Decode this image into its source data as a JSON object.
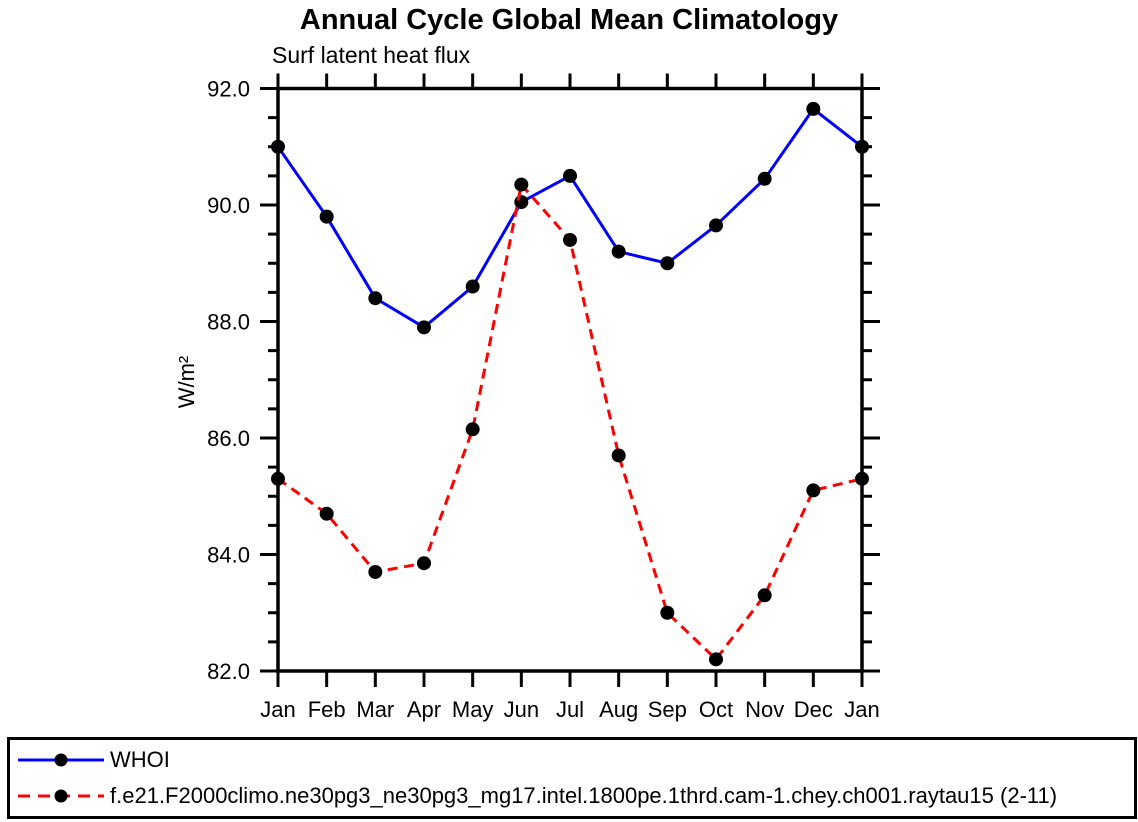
{
  "page": {
    "background": "#ffffff"
  },
  "chart_data": {
    "type": "line",
    "title": "Annual Cycle Global Mean Climatology",
    "subtitle": "Surf latent heat flux",
    "ylabel": "W/m²",
    "xlabel": "",
    "categories": [
      "Jan",
      "Feb",
      "Mar",
      "Apr",
      "May",
      "Jun",
      "Jul",
      "Aug",
      "Sep",
      "Oct",
      "Nov",
      "Dec",
      "Jan"
    ],
    "ylim": [
      82.0,
      92.0
    ],
    "yticks": [
      82.0,
      84.0,
      86.0,
      88.0,
      90.0,
      92.0
    ],
    "ytick_labels": [
      "82.0",
      "84.0",
      "86.0",
      "88.0",
      "90.0",
      "92.0"
    ],
    "ytick_minor_step": 0.5,
    "grid": false,
    "legend_position": "bottom-box",
    "axis_color": "#000000",
    "marker": {
      "shape": "circle",
      "color": "#000000"
    },
    "series": [
      {
        "name": "WHOI",
        "color": "#0000ff",
        "line_style": "solid",
        "values": [
          91.0,
          89.8,
          88.4,
          87.9,
          88.6,
          90.05,
          90.5,
          89.2,
          89.0,
          89.65,
          90.45,
          91.65,
          91.0
        ]
      },
      {
        "name": "f.e21.F2000climo.ne30pg3_ne30pg3_mg17.intel.1800pe.1thrd.cam-1.chey.ch001.raytau15 (2-11)",
        "color": "#ff0000",
        "line_style": "dashed",
        "values": [
          85.3,
          84.7,
          83.7,
          83.85,
          86.15,
          90.35,
          89.4,
          85.7,
          83.0,
          82.2,
          83.3,
          85.1,
          85.3
        ]
      }
    ]
  }
}
